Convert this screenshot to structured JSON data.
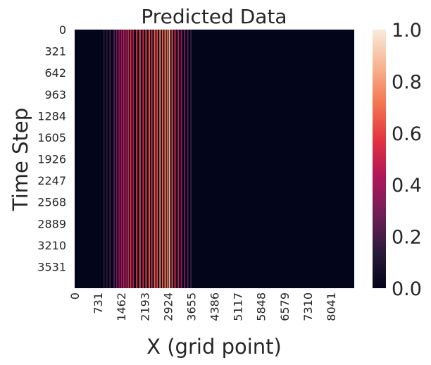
{
  "chart_data": {
    "type": "heatmap",
    "title": "Predicted Data",
    "xlabel": "X (grid point)",
    "ylabel": "Time Step",
    "x_tick_labels": [
      "0",
      "731",
      "1462",
      "2193",
      "2924",
      "3655",
      "4386",
      "5117",
      "5848",
      "6579",
      "7310",
      "8041"
    ],
    "y_tick_labels": [
      "0",
      "321",
      "642",
      "963",
      "1284",
      "1605",
      "1926",
      "2247",
      "2568",
      "2889",
      "3210",
      "3531"
    ],
    "x_range": [
      0,
      8772
    ],
    "y_range": [
      0,
      3852
    ],
    "colorbar": {
      "ticks": [
        "0.0",
        "0.2",
        "0.4",
        "0.6",
        "0.8",
        "1.0"
      ],
      "range": [
        0,
        1
      ],
      "colormap": "rocket",
      "colors": [
        "#03051a",
        "#2b1a3a",
        "#701f57",
        "#ae1759",
        "#e13342",
        "#f37651",
        "#f6b48f",
        "#faebdd"
      ]
    },
    "background_value": 0.0,
    "stripes": [
      {
        "x": 920,
        "value": 0.12
      },
      {
        "x": 1010,
        "value": 0.14
      },
      {
        "x": 1110,
        "value": 0.18
      },
      {
        "x": 1240,
        "value": 0.22
      },
      {
        "x": 1320,
        "value": 0.28
      },
      {
        "x": 1400,
        "value": 0.35
      },
      {
        "x": 1470,
        "value": 0.42
      },
      {
        "x": 1540,
        "value": 0.48
      },
      {
        "x": 1610,
        "value": 0.4
      },
      {
        "x": 1680,
        "value": 0.5
      },
      {
        "x": 1760,
        "value": 0.55
      },
      {
        "x": 1840,
        "value": 0.46
      },
      {
        "x": 1950,
        "value": 0.58
      },
      {
        "x": 2050,
        "value": 0.62
      },
      {
        "x": 2150,
        "value": 0.52
      },
      {
        "x": 2240,
        "value": 0.6
      },
      {
        "x": 2340,
        "value": 0.65
      },
      {
        "x": 2420,
        "value": 0.55
      },
      {
        "x": 2510,
        "value": 0.68
      },
      {
        "x": 2590,
        "value": 0.62
      },
      {
        "x": 2680,
        "value": 0.72
      },
      {
        "x": 2760,
        "value": 0.66
      },
      {
        "x": 2840,
        "value": 0.75
      },
      {
        "x": 2910,
        "value": 0.68
      },
      {
        "x": 2975,
        "value": 0.85
      },
      {
        "x": 3060,
        "value": 0.62
      },
      {
        "x": 3150,
        "value": 0.52
      },
      {
        "x": 3250,
        "value": 0.45
      },
      {
        "x": 3350,
        "value": 0.38
      },
      {
        "x": 3450,
        "value": 0.3
      },
      {
        "x": 3550,
        "value": 0.22
      },
      {
        "x": 3650,
        "value": 0.16
      }
    ]
  }
}
